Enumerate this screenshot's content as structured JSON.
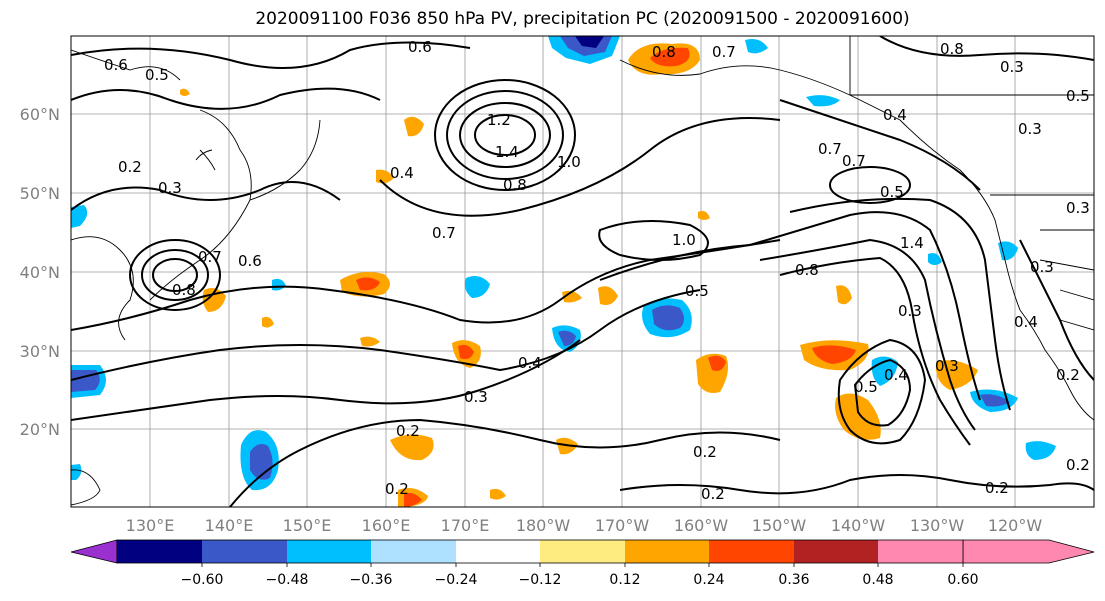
{
  "title": "2020091100 F036 850 hPa PV, precipitation PC (2020091500 - 2020091600)",
  "lat_labels": [
    "60°N",
    "50°N",
    "40°N",
    "30°N",
    "20°N"
  ],
  "lon_labels": [
    "130°E",
    "140°E",
    "150°E",
    "160°E",
    "170°E",
    "180°W",
    "170°W",
    "160°W",
    "150°W",
    "140°W",
    "130°W",
    "120°W"
  ],
  "colorbar": {
    "colors": [
      "#9b30d0",
      "#000080",
      "#3a58c8",
      "#00bfff",
      "#aee0ff",
      "#ffffff",
      "#ffec80",
      "#ffa500",
      "#ff4500",
      "#b22222",
      "#ff88b0"
    ],
    "tick_labels": [
      "−0.60",
      "−0.48",
      "−0.36",
      "−0.24",
      "−0.12",
      "0.12",
      "0.24",
      "0.36",
      "0.48",
      "0.60"
    ]
  },
  "contour_labels": [
    {
      "text": "0.6",
      "kind": "upper"
    },
    {
      "text": "0.8",
      "kind": "upper"
    },
    {
      "text": "0.7",
      "kind": "upper"
    },
    {
      "text": "0.8",
      "kind": "upper-right"
    },
    {
      "text": "0.3",
      "kind": "upper-right"
    },
    {
      "text": "0.5",
      "kind": "upper-left"
    },
    {
      "text": "0.6",
      "kind": "upper-left"
    },
    {
      "text": "1.2",
      "kind": "jet"
    },
    {
      "text": "1.4",
      "kind": "jet"
    },
    {
      "text": "1.0",
      "kind": "jet"
    },
    {
      "text": "0.8",
      "kind": "jet"
    },
    {
      "text": "0.4",
      "kind": "mid"
    },
    {
      "text": "0.3",
      "kind": "mid"
    },
    {
      "text": "0.2",
      "kind": "mid"
    },
    {
      "text": "0.7",
      "kind": "mid"
    },
    {
      "text": "0.6",
      "kind": "mid"
    },
    {
      "text": "0.8",
      "kind": "mid"
    },
    {
      "text": "0.7",
      "kind": "mid"
    },
    {
      "text": "1.0",
      "kind": "mid"
    },
    {
      "text": "0.5",
      "kind": "mid"
    },
    {
      "text": "0.8",
      "kind": "mid"
    },
    {
      "text": "1.4",
      "kind": "mid"
    },
    {
      "text": "0.7",
      "kind": "mid"
    },
    {
      "text": "0.7",
      "kind": "mid"
    },
    {
      "text": "0.5",
      "kind": "mid"
    },
    {
      "text": "0.4",
      "kind": "mid"
    },
    {
      "text": "0.3",
      "kind": "mid"
    },
    {
      "text": "0.4",
      "kind": "mid"
    },
    {
      "text": "0.3",
      "kind": "mid"
    },
    {
      "text": "0.2",
      "kind": "low"
    },
    {
      "text": "0.2",
      "kind": "low"
    },
    {
      "text": "0.2",
      "kind": "low"
    },
    {
      "text": "0.2",
      "kind": "low"
    },
    {
      "text": "0.5",
      "kind": "low"
    },
    {
      "text": "0.4",
      "kind": "low"
    },
    {
      "text": "0.3",
      "kind": "low"
    },
    {
      "text": "0.2",
      "kind": "low"
    },
    {
      "text": "0.2",
      "kind": "low"
    },
    {
      "text": "0.3",
      "kind": "right"
    },
    {
      "text": "0.2",
      "kind": "right"
    },
    {
      "text": "0.4",
      "kind": "right"
    },
    {
      "text": "0.3",
      "kind": "right"
    },
    {
      "text": "0.5",
      "kind": "right"
    },
    {
      "text": "0.3",
      "kind": "right"
    }
  ]
}
